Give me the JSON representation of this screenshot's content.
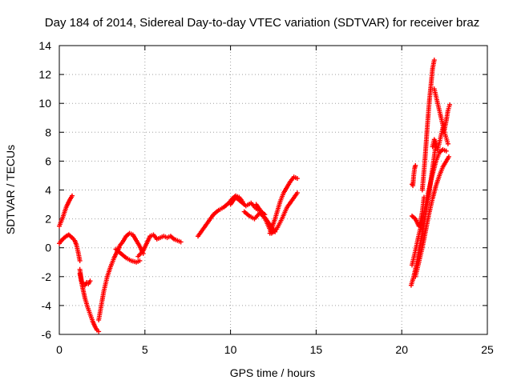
{
  "chart_data": {
    "type": "scatter",
    "title": "Day 184 of 2014, Sidereal Day-to-day VTEC variation (SDTVAR) for receiver braz",
    "xlabel": "GPS time / hours",
    "ylabel": "SDTVAR / TECUs",
    "xlim": [
      0,
      25
    ],
    "ylim": [
      -6,
      14
    ],
    "xticks": [
      "0",
      "5",
      "10",
      "15",
      "20",
      "25"
    ],
    "yticks": [
      "-6",
      "-4",
      "-2",
      "0",
      "2",
      "4",
      "6",
      "8",
      "10",
      "12",
      "14"
    ],
    "grid": true,
    "marker": "plus",
    "color": "#ff0000",
    "segments": [
      {
        "x": [
          0.0,
          0.2,
          0.4,
          0.6,
          0.75
        ],
        "y": [
          1.5,
          2.1,
          2.8,
          3.3,
          3.6
        ]
      },
      {
        "x": [
          0.0,
          0.2,
          0.4,
          0.55,
          0.75,
          0.9,
          1.0,
          1.1,
          1.2
        ],
        "y": [
          0.3,
          0.6,
          0.8,
          0.9,
          0.7,
          0.5,
          0.2,
          -0.3,
          -0.9
        ]
      },
      {
        "x": [
          1.2,
          1.3,
          1.4,
          1.5,
          1.6,
          1.7,
          1.8
        ],
        "y": [
          -1.5,
          -2.3,
          -2.5,
          -2.6,
          -2.4,
          -2.5,
          -2.3
        ]
      },
      {
        "x": [
          1.2,
          1.35,
          1.5,
          1.65,
          1.8,
          1.95,
          2.1,
          2.2,
          2.3
        ],
        "y": [
          -1.8,
          -2.7,
          -3.5,
          -4.1,
          -4.6,
          -5.1,
          -5.5,
          -5.7,
          -5.8
        ]
      },
      {
        "x": [
          2.3,
          2.45,
          2.6,
          2.8,
          3.0,
          3.2,
          3.4,
          3.5
        ],
        "y": [
          -5.0,
          -4.0,
          -3.0,
          -2.0,
          -1.3,
          -0.7,
          -0.2,
          0.0
        ]
      },
      {
        "x": [
          3.5,
          3.7,
          3.9,
          4.1,
          4.3,
          4.5,
          4.7,
          4.9
        ],
        "y": [
          0.1,
          0.4,
          0.8,
          1.0,
          0.9,
          0.5,
          0.1,
          -0.4
        ]
      },
      {
        "x": [
          3.3,
          3.6,
          3.9,
          4.2,
          4.5,
          4.7
        ],
        "y": [
          -0.1,
          -0.4,
          -0.7,
          -0.9,
          -1.0,
          -0.9
        ]
      },
      {
        "x": [
          4.6,
          4.9,
          5.1,
          5.3,
          5.5,
          5.7,
          5.9,
          6.1,
          6.3,
          6.5,
          6.7,
          6.9,
          7.1
        ],
        "y": [
          -0.6,
          -0.2,
          0.3,
          0.8,
          0.9,
          0.6,
          0.7,
          0.8,
          0.7,
          0.8,
          0.6,
          0.5,
          0.4
        ]
      },
      {
        "x": [
          8.1,
          8.4,
          8.7,
          9.0,
          9.3,
          9.6,
          9.9,
          10.1,
          10.3,
          10.5,
          10.7
        ],
        "y": [
          0.8,
          1.3,
          1.8,
          2.3,
          2.6,
          2.8,
          3.1,
          3.4,
          3.6,
          3.5,
          3.2
        ]
      },
      {
        "x": [
          10.0,
          10.3,
          10.6,
          10.9,
          11.2,
          11.5,
          11.8,
          12.0
        ],
        "y": [
          3.0,
          3.5,
          3.2,
          2.9,
          3.1,
          2.7,
          2.5,
          2.3
        ]
      },
      {
        "x": [
          10.8,
          11.1,
          11.4,
          11.7,
          12.0,
          12.3,
          12.6
        ],
        "y": [
          2.5,
          2.2,
          2.0,
          2.4,
          2.1,
          1.6,
          1.1
        ]
      },
      {
        "x": [
          11.5,
          11.8,
          12.1,
          12.4,
          12.7,
          13.0,
          13.3,
          13.6,
          13.9
        ],
        "y": [
          3.0,
          2.5,
          1.8,
          1.0,
          1.3,
          2.0,
          2.8,
          3.3,
          3.8
        ]
      },
      {
        "x": [
          12.3,
          12.6,
          12.9,
          13.1,
          13.3,
          13.5,
          13.7,
          13.9
        ],
        "y": [
          1.0,
          2.0,
          3.2,
          3.8,
          4.2,
          4.6,
          4.9,
          4.8
        ]
      },
      {
        "x": [
          20.6,
          20.65,
          20.7,
          20.75,
          20.8
        ],
        "y": [
          4.4,
          4.3,
          5.0,
          5.5,
          5.7
        ]
      },
      {
        "x": [
          20.55,
          20.7,
          20.85,
          21.0,
          21.2,
          21.4,
          21.6,
          21.8,
          22.0
        ],
        "y": [
          -2.6,
          -2.0,
          -1.2,
          -0.2,
          1.0,
          2.4,
          3.8,
          5.5,
          7.2
        ]
      },
      {
        "x": [
          20.6,
          20.8,
          21.0,
          21.2,
          21.4,
          21.6,
          21.8,
          22.0,
          22.2,
          22.4,
          22.6
        ],
        "y": [
          -1.2,
          -0.2,
          0.9,
          1.9,
          3.0,
          4.1,
          5.1,
          6.0,
          6.6,
          6.8,
          6.7
        ]
      },
      {
        "x": [
          20.8,
          21.0,
          21.2,
          21.4,
          21.6,
          21.8,
          22.0,
          22.2,
          22.4,
          22.6,
          22.75
        ],
        "y": [
          -2.0,
          -1.0,
          0.0,
          1.2,
          2.4,
          3.4,
          4.3,
          5.0,
          5.6,
          6.0,
          6.3
        ]
      },
      {
        "x": [
          20.6,
          20.8,
          21.0,
          21.1,
          21.2,
          21.3
        ],
        "y": [
          2.2,
          2.0,
          1.5,
          1.8,
          2.5,
          3.5
        ]
      },
      {
        "x": [
          21.2,
          21.35,
          21.5,
          21.6,
          21.7,
          21.8,
          21.9
        ],
        "y": [
          4.0,
          6.0,
          8.5,
          10.0,
          11.2,
          12.4,
          13.0
        ]
      },
      {
        "x": [
          21.9,
          22.0,
          22.1,
          22.2,
          22.3,
          22.4,
          22.5,
          22.6,
          22.7,
          22.8
        ],
        "y": [
          11.0,
          10.5,
          10.0,
          9.5,
          9.0,
          8.5,
          8.2,
          8.8,
          9.5,
          9.9
        ]
      },
      {
        "x": [
          21.8,
          21.9,
          22.0,
          22.1,
          22.2,
          22.3,
          22.4,
          22.5,
          22.6,
          22.7
        ],
        "y": [
          7.0,
          7.5,
          7.2,
          6.8,
          7.3,
          7.8,
          8.3,
          8.0,
          7.6,
          7.2
        ]
      }
    ]
  }
}
